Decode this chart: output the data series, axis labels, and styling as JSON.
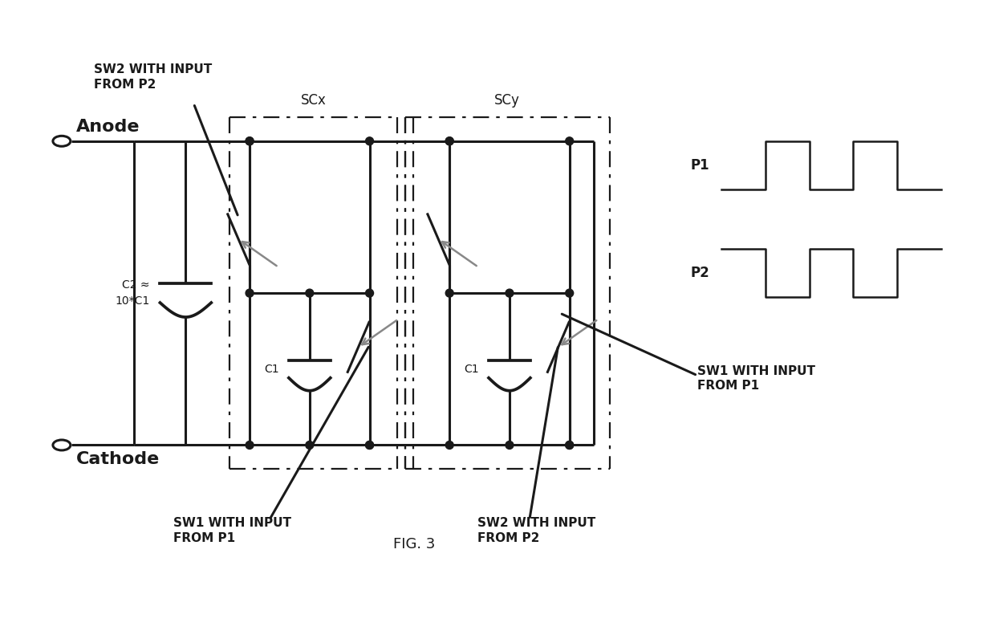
{
  "bg_color": "#ffffff",
  "line_color": "#1a1a1a",
  "gray_color": "#888888",
  "fig_width": 12.4,
  "fig_height": 8.01,
  "title": "FIG. 3",
  "annotations": {
    "anode": "Anode",
    "cathode": "Cathode",
    "c2_label": "C2 ≈\n10*C1",
    "c1_label1": "C1",
    "c1_label2": "C1",
    "scx": "SCx",
    "scy": "SCy",
    "sw2_p2_top": "SW2 WITH INPUT\nFROM P2",
    "sw1_p1_bottom": "SW1 WITH INPUT\nFROM P1",
    "sw2_p2_bottom": "SW2 WITH INPUT\nFROM P2",
    "sw1_p1_right": "SW1 WITH INPUT\nFROM P1",
    "p1_label": "P1",
    "p2_label": "P2"
  }
}
